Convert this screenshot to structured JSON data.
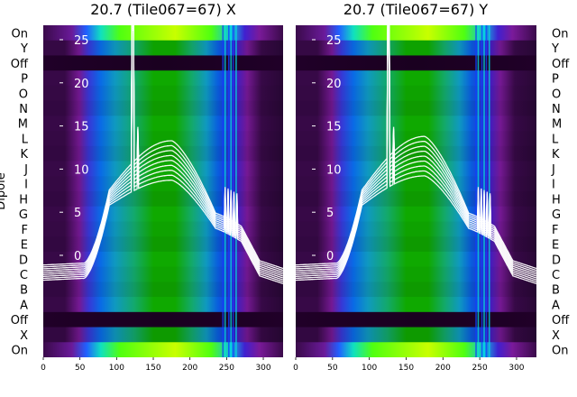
{
  "chart_data": [
    {
      "type": "heatmap",
      "title": "20.7 (Tile067=67) X",
      "ylabel": "Dipole",
      "xlim": [
        0,
        327
      ],
      "x_ticks": [
        0,
        50,
        100,
        150,
        200,
        250,
        300
      ],
      "overlay_yticks": [
        0,
        5,
        10,
        15,
        20,
        25
      ],
      "dipole_rows": [
        "On",
        "Y",
        "Off",
        "P",
        "O",
        "N",
        "M",
        "L",
        "K",
        "J",
        "I",
        "H",
        "G",
        "F",
        "E",
        "D",
        "C",
        "B",
        "A",
        "Off",
        "X",
        "On"
      ],
      "spectrum_peak": 11,
      "spike_channel": 122
    },
    {
      "type": "heatmap",
      "title": "20.7 (Tile067=67) Y",
      "ylabel": "",
      "xlim": [
        0,
        327
      ],
      "x_ticks": [
        0,
        50,
        100,
        150,
        200,
        250,
        300
      ],
      "overlay_yticks": [
        0,
        5,
        10,
        15,
        20,
        25
      ],
      "dipole_rows": [
        "On",
        "Y",
        "Off",
        "P",
        "O",
        "N",
        "M",
        "L",
        "K",
        "J",
        "I",
        "H",
        "G",
        "F",
        "E",
        "D",
        "C",
        "B",
        "A",
        "Off",
        "X",
        "On"
      ],
      "spectrum_peak": 11.5,
      "spike_channel": 126
    }
  ]
}
